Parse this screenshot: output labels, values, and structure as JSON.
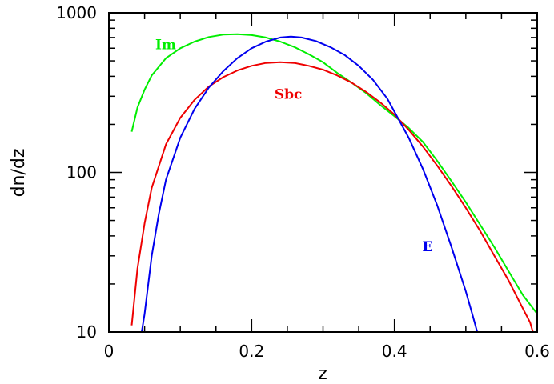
{
  "chart_data": {
    "type": "line",
    "title": "",
    "xlabel": "z",
    "ylabel": "dn/dz",
    "xlim": [
      0,
      0.6
    ],
    "ylim": [
      10,
      1000
    ],
    "yscale": "log",
    "x_ticks": [
      {
        "value": 0,
        "label": "0"
      },
      {
        "value": 0.2,
        "label": "0.2"
      },
      {
        "value": 0.4,
        "label": "0.4"
      },
      {
        "value": 0.6,
        "label": "0.6"
      }
    ],
    "y_ticks": [
      {
        "value": 10,
        "label": "10"
      },
      {
        "value": 100,
        "label": "100"
      },
      {
        "value": 1000,
        "label": "1000"
      }
    ],
    "grid": false,
    "legend": "none",
    "series": [
      {
        "name": "Im",
        "color": "#00ee00",
        "label_at": {
          "x": 0.065,
          "y": 590
        },
        "points": [
          [
            0.032,
            180
          ],
          [
            0.04,
            255
          ],
          [
            0.05,
            330
          ],
          [
            0.06,
            405
          ],
          [
            0.08,
            520
          ],
          [
            0.1,
            600
          ],
          [
            0.12,
            660
          ],
          [
            0.14,
            705
          ],
          [
            0.16,
            730
          ],
          [
            0.18,
            735
          ],
          [
            0.2,
            725
          ],
          [
            0.22,
            700
          ],
          [
            0.24,
            660
          ],
          [
            0.26,
            610
          ],
          [
            0.28,
            550
          ],
          [
            0.3,
            490
          ],
          [
            0.32,
            420
          ],
          [
            0.34,
            365
          ],
          [
            0.36,
            315
          ],
          [
            0.38,
            265
          ],
          [
            0.4,
            225
          ],
          [
            0.42,
            190
          ],
          [
            0.44,
            155
          ],
          [
            0.46,
            118
          ],
          [
            0.48,
            88
          ],
          [
            0.5,
            65
          ],
          [
            0.52,
            47
          ],
          [
            0.54,
            34
          ],
          [
            0.56,
            24
          ],
          [
            0.58,
            17
          ],
          [
            0.6,
            13
          ]
        ]
      },
      {
        "name": "Sbc",
        "color": "#ee0000",
        "label_at": {
          "x": 0.232,
          "y": 290
        },
        "points": [
          [
            0.032,
            11
          ],
          [
            0.04,
            25
          ],
          [
            0.05,
            48
          ],
          [
            0.06,
            80
          ],
          [
            0.08,
            150
          ],
          [
            0.1,
            220
          ],
          [
            0.12,
            285
          ],
          [
            0.14,
            345
          ],
          [
            0.16,
            395
          ],
          [
            0.18,
            435
          ],
          [
            0.2,
            465
          ],
          [
            0.22,
            485
          ],
          [
            0.24,
            490
          ],
          [
            0.26,
            485
          ],
          [
            0.28,
            465
          ],
          [
            0.3,
            440
          ],
          [
            0.32,
            405
          ],
          [
            0.34,
            365
          ],
          [
            0.36,
            320
          ],
          [
            0.38,
            275
          ],
          [
            0.4,
            230
          ],
          [
            0.42,
            185
          ],
          [
            0.44,
            145
          ],
          [
            0.46,
            110
          ],
          [
            0.48,
            82
          ],
          [
            0.5,
            60
          ],
          [
            0.52,
            43
          ],
          [
            0.54,
            30
          ],
          [
            0.56,
            21
          ],
          [
            0.58,
            14
          ],
          [
            0.59,
            11.5
          ],
          [
            0.594,
            10
          ]
        ]
      },
      {
        "name": "E",
        "color": "#0000ee",
        "label_at": {
          "x": 0.439,
          "y": 32
        },
        "points": [
          [
            0.046,
            10
          ],
          [
            0.05,
            13
          ],
          [
            0.06,
            30
          ],
          [
            0.07,
            55
          ],
          [
            0.08,
            90
          ],
          [
            0.1,
            165
          ],
          [
            0.12,
            250
          ],
          [
            0.14,
            340
          ],
          [
            0.16,
            430
          ],
          [
            0.18,
            520
          ],
          [
            0.2,
            600
          ],
          [
            0.22,
            660
          ],
          [
            0.24,
            700
          ],
          [
            0.255,
            710
          ],
          [
            0.27,
            700
          ],
          [
            0.29,
            665
          ],
          [
            0.31,
            610
          ],
          [
            0.33,
            545
          ],
          [
            0.35,
            465
          ],
          [
            0.37,
            380
          ],
          [
            0.39,
            290
          ],
          [
            0.4,
            240
          ],
          [
            0.42,
            165
          ],
          [
            0.44,
            105
          ],
          [
            0.46,
            62
          ],
          [
            0.48,
            34
          ],
          [
            0.5,
            18
          ],
          [
            0.51,
            12.5
          ],
          [
            0.516,
            10
          ]
        ]
      }
    ]
  }
}
